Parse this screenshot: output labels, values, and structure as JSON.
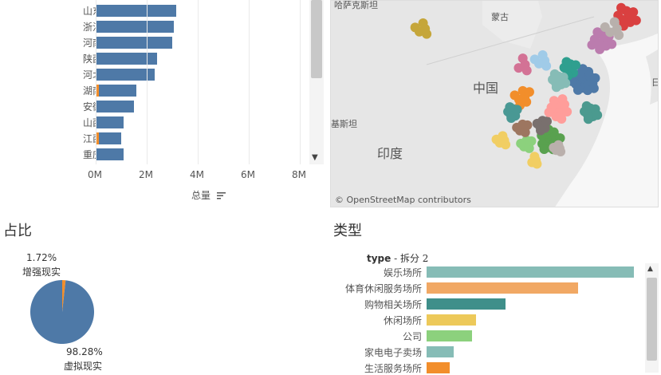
{
  "province_chart": {
    "categories": [
      "山东省",
      "浙江省",
      "河南省",
      "陕西省",
      "河北省",
      "湖南省",
      "安徽省",
      "山西省",
      "江西省",
      "重庆市"
    ],
    "series": [
      {
        "name": "虚拟现实",
        "values": [
          3.15,
          3.05,
          3.0,
          2.4,
          2.3,
          1.6,
          1.5,
          1.1,
          1.0,
          1.1
        ]
      },
      {
        "name": "增强现实",
        "values": [
          0,
          0,
          0,
          0,
          0,
          0.08,
          0,
          0,
          0.05,
          0
        ]
      }
    ],
    "xticks": [
      "0M",
      "2M",
      "4M",
      "6M",
      "8M"
    ],
    "xlim": [
      0,
      8
    ],
    "xlabel": "总量",
    "sort_icon": "sort-descending-icon",
    "colors": {
      "bar": "#4e79a7",
      "accent": "#f28e2b"
    }
  },
  "map": {
    "labels": {
      "mongolia": "蒙古",
      "china": "中国",
      "india": "印度",
      "kazakhstan": "哈萨克斯坦",
      "pakistan": "基斯坦",
      "japan": "日"
    },
    "attribution": "© OpenStreetMap contributors"
  },
  "share_section": {
    "title": "占比",
    "pie": {
      "slices": [
        {
          "label": "增强现实",
          "pct_text": "1.72%",
          "value": 1.72,
          "color": "#f28e2b"
        },
        {
          "label": "虚拟现实",
          "pct_text": "98.28%",
          "value": 98.28,
          "color": "#4e79a7"
        }
      ]
    }
  },
  "type_section": {
    "title": "类型",
    "header_field": "type",
    "header_suffix": " - 拆分 2",
    "chart_data": {
      "type": "bar",
      "categories": [
        "娱乐场所",
        "体育休闲服务场所",
        "购物相关场所",
        "休闲场所",
        "公司",
        "家电电子卖场",
        "生活服务场所"
      ],
      "values": [
        100,
        73,
        38,
        24,
        22,
        13,
        11
      ],
      "colors": [
        "#86bcb6",
        "#f1a864",
        "#3f8f8a",
        "#edc95a",
        "#8cd17d",
        "#86bcb6",
        "#f28e2b"
      ]
    }
  }
}
